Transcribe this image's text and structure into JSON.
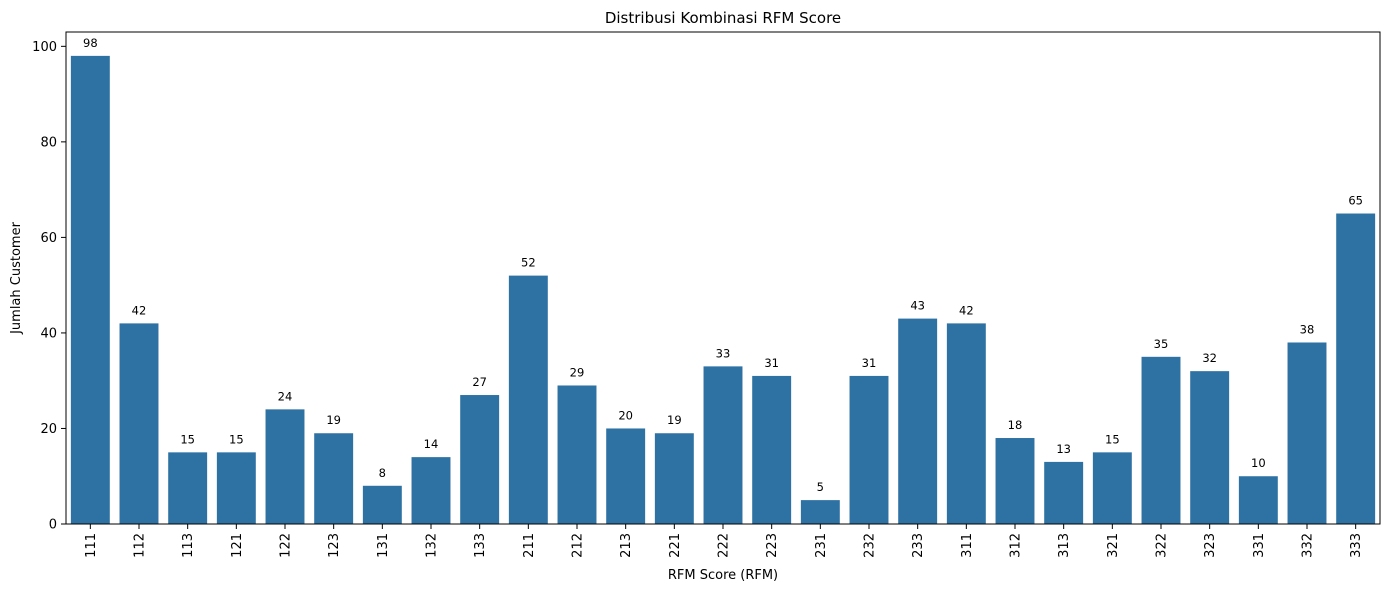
{
  "chart_data": {
    "type": "bar",
    "title": "Distribusi Kombinasi RFM Score",
    "xlabel": "RFM Score (RFM)",
    "ylabel": "Jumlah Customer",
    "categories": [
      "111",
      "112",
      "113",
      "121",
      "122",
      "123",
      "131",
      "132",
      "133",
      "211",
      "212",
      "213",
      "221",
      "222",
      "223",
      "231",
      "232",
      "233",
      "311",
      "312",
      "313",
      "321",
      "322",
      "323",
      "331",
      "332",
      "333"
    ],
    "values": [
      98,
      42,
      15,
      15,
      24,
      19,
      8,
      14,
      27,
      52,
      29,
      20,
      19,
      33,
      31,
      5,
      31,
      43,
      42,
      18,
      13,
      15,
      35,
      32,
      10,
      38,
      65
    ],
    "ylim": [
      0,
      103
    ],
    "yticks": [
      0,
      20,
      40,
      60,
      80,
      100
    ],
    "bar_color": "#2e72a4",
    "grid": false,
    "data_labels": true
  }
}
